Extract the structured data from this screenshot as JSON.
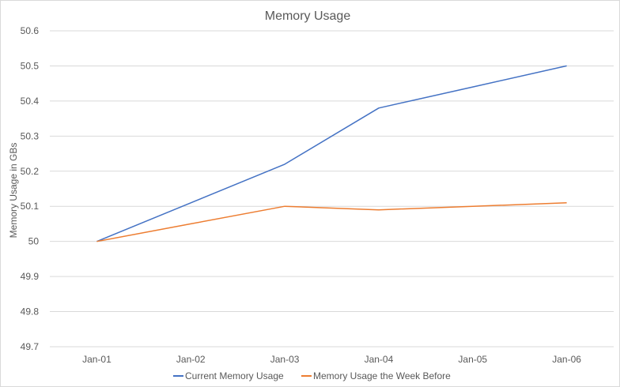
{
  "chart_data": {
    "type": "line",
    "title": "Memory Usage",
    "xlabel": "",
    "ylabel": "Memory Usage in GBs",
    "categories": [
      "Jan-01",
      "Jan-02",
      "Jan-03",
      "Jan-04",
      "Jan-05",
      "Jan-06"
    ],
    "yticks": [
      "50.6",
      "50.5",
      "50.4",
      "50.3",
      "50.2",
      "50.1",
      "50",
      "49.9",
      "49.8",
      "49.7"
    ],
    "ylim": [
      49.7,
      50.6
    ],
    "grid": true,
    "legend_position": "bottom",
    "series": [
      {
        "name": "Current Memory Usage",
        "color": "#4472c4",
        "values": [
          50.0,
          50.11,
          50.22,
          50.38,
          50.44,
          50.5
        ]
      },
      {
        "name": "Memory Usage the Week Before",
        "color": "#ed7d31",
        "values": [
          50.0,
          50.05,
          50.1,
          50.09,
          50.1,
          50.11
        ]
      }
    ]
  }
}
